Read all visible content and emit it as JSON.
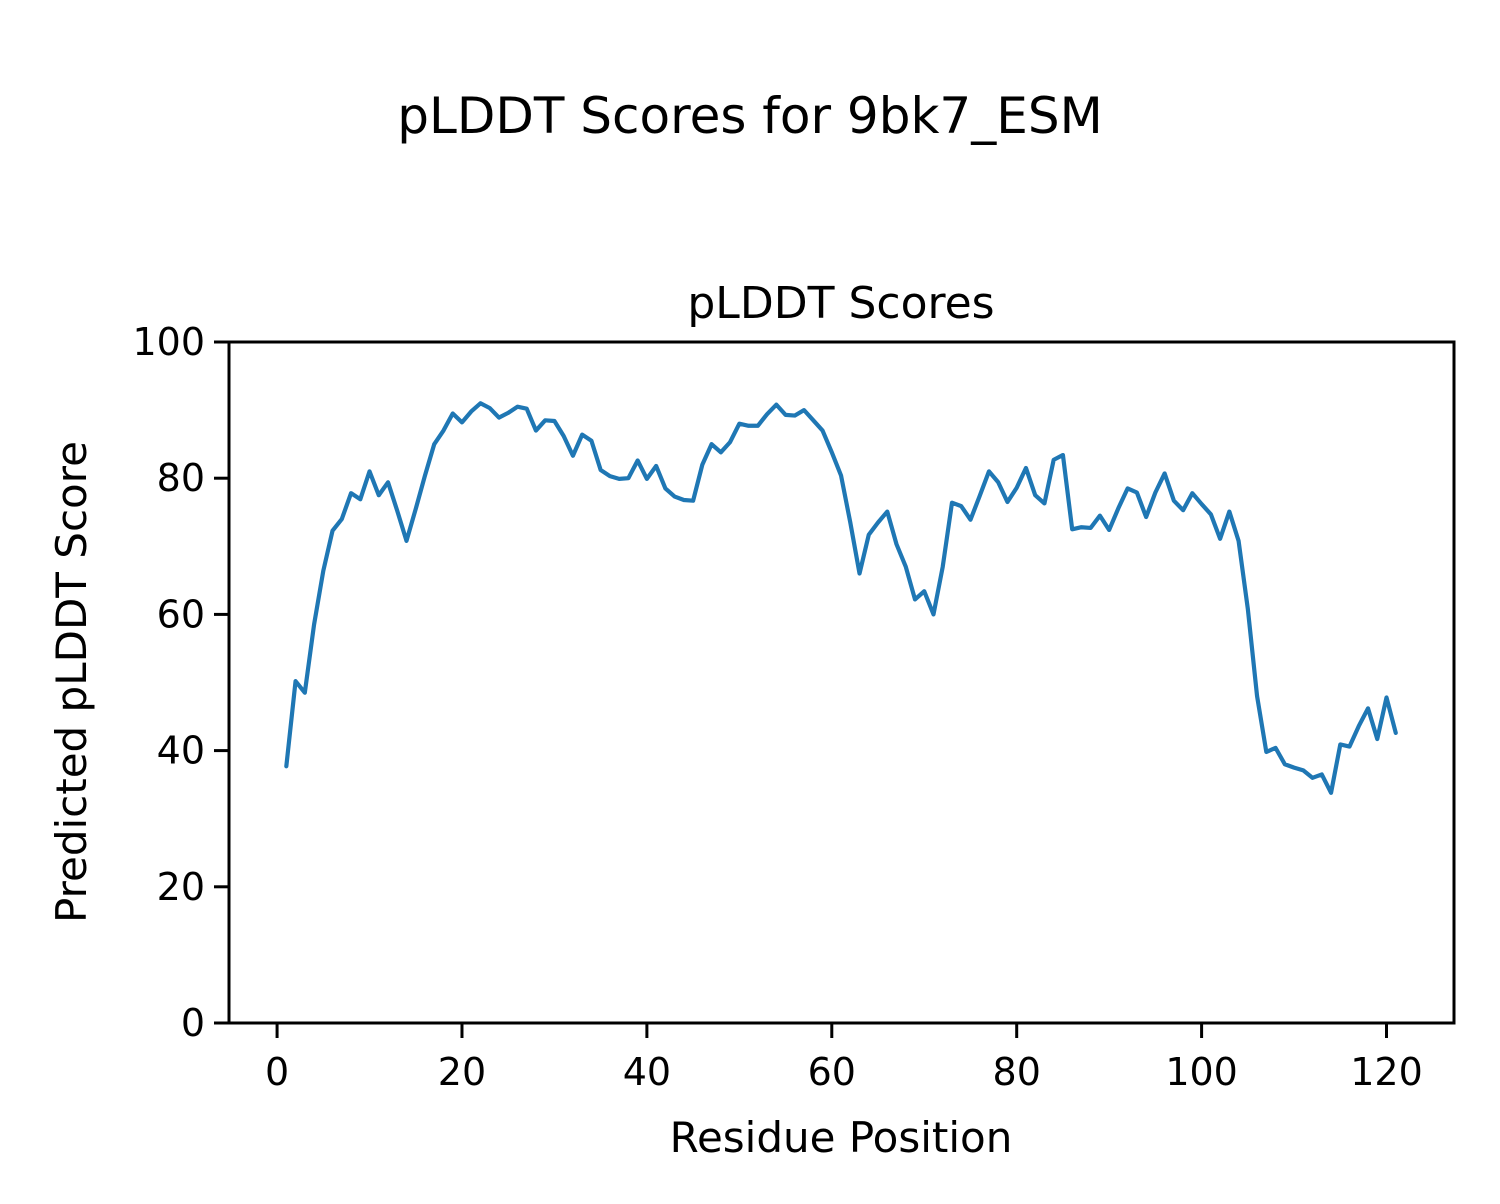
{
  "figure": {
    "title": "pLDDT Scores for 9bk7_ESM",
    "background_color": "#ffffff",
    "text_color": "#000000"
  },
  "chart_data": {
    "type": "line",
    "title": "pLDDT Scores",
    "xlabel": "Residue Position",
    "ylabel": "Predicted pLDDT Score",
    "line_color": "#1f77b4",
    "axis_color": "#000000",
    "grid": false,
    "legend": false,
    "xlim": [
      -5.2,
      127.3
    ],
    "ylim": [
      0,
      100
    ],
    "xticks": [
      0,
      20,
      40,
      60,
      80,
      100,
      120
    ],
    "yticks": [
      0,
      20,
      40,
      60,
      80,
      100
    ],
    "x": [
      1,
      2,
      3,
      4,
      5,
      6,
      7,
      8,
      9,
      10,
      11,
      12,
      13,
      14,
      15,
      16,
      17,
      18,
      19,
      20,
      21,
      22,
      23,
      24,
      25,
      26,
      27,
      28,
      29,
      30,
      31,
      32,
      33,
      34,
      35,
      36,
      37,
      38,
      39,
      40,
      41,
      42,
      43,
      44,
      45,
      46,
      47,
      48,
      49,
      50,
      51,
      52,
      53,
      54,
      55,
      56,
      57,
      58,
      59,
      60,
      61,
      62,
      63,
      64,
      65,
      66,
      67,
      68,
      69,
      70,
      71,
      72,
      73,
      74,
      75,
      76,
      77,
      78,
      79,
      80,
      81,
      82,
      83,
      84,
      85,
      86,
      87,
      88,
      89,
      90,
      91,
      92,
      93,
      94,
      95,
      96,
      97,
      98,
      99,
      100,
      101,
      102,
      103,
      104,
      105,
      106,
      107,
      108,
      109,
      110,
      111,
      112,
      113,
      114,
      115,
      116,
      117,
      118,
      119,
      120,
      121
    ],
    "y": [
      37.7,
      50.2,
      48.5,
      58.5,
      66.4,
      72.3,
      74.0,
      77.8,
      76.9,
      81.0,
      77.5,
      79.4,
      75.2,
      70.8,
      75.5,
      80.4,
      85.0,
      87.0,
      89.5,
      88.2,
      89.8,
      91.0,
      90.3,
      88.9,
      89.6,
      90.5,
      90.2,
      87.0,
      88.5,
      88.4,
      86.2,
      83.3,
      86.4,
      85.5,
      81.2,
      80.3,
      79.9,
      80.0,
      82.6,
      79.9,
      81.8,
      78.5,
      77.3,
      76.8,
      76.7,
      82.0,
      85.0,
      83.8,
      85.3,
      88.0,
      87.7,
      87.7,
      89.4,
      90.8,
      89.3,
      89.2,
      90.0,
      88.5,
      87.0,
      83.8,
      80.4,
      73.5,
      66.0,
      71.7,
      73.5,
      75.1,
      70.3,
      67.0,
      62.2,
      63.4,
      60.0,
      67.0,
      76.4,
      75.9,
      73.9,
      77.4,
      81.0,
      79.4,
      76.5,
      78.6,
      81.5,
      77.5,
      76.3,
      82.7,
      83.4,
      72.5,
      72.8,
      72.7,
      74.5,
      72.4,
      75.6,
      78.5,
      77.9,
      74.3,
      77.9,
      80.7,
      76.7,
      75.3,
      77.8,
      76.2,
      74.7,
      71.1,
      75.1,
      70.8,
      60.8,
      48.0,
      39.8,
      40.4,
      38.0,
      37.5,
      37.1,
      36.0,
      36.5,
      33.8,
      40.9,
      40.6,
      43.6,
      46.2,
      41.7,
      47.8,
      42.6
    ]
  }
}
